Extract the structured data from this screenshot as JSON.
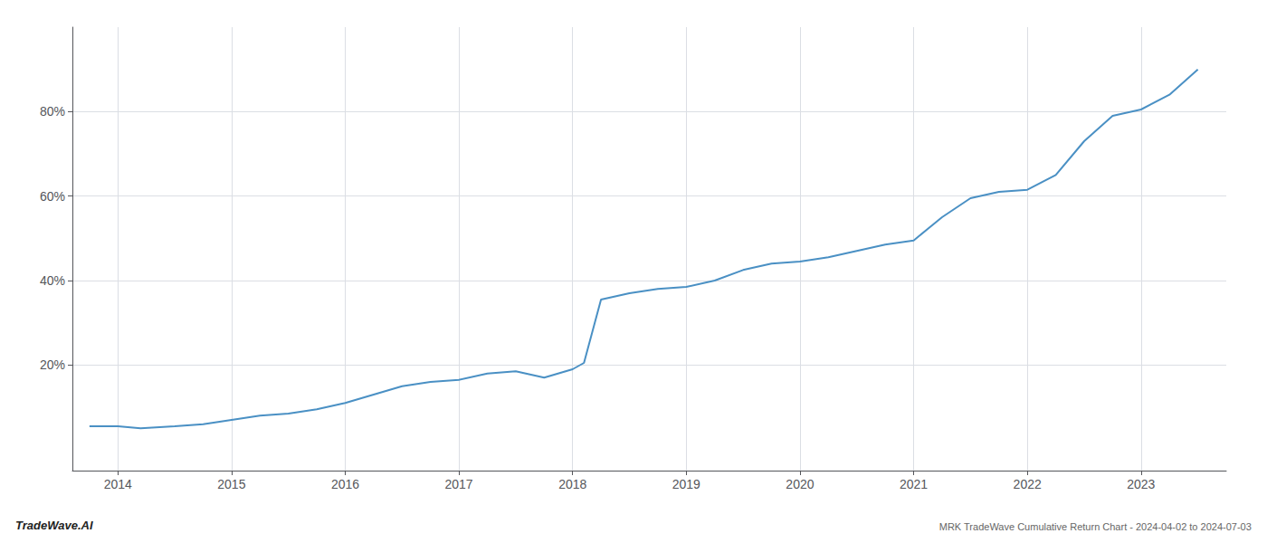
{
  "chart_data": {
    "type": "line",
    "color": "#4a90c4",
    "grid": true,
    "annotations": [
      "TradeWave.AI",
      "MRK TradeWave Cumulative Return Chart - 2024-04-02 to 2024-07-03"
    ],
    "x": [
      2013.75,
      2014.0,
      2014.2,
      2014.5,
      2014.75,
      2015.0,
      2015.25,
      2015.5,
      2015.75,
      2016.0,
      2016.25,
      2016.5,
      2016.75,
      2017.0,
      2017.25,
      2017.5,
      2017.75,
      2018.0,
      2018.1,
      2018.25,
      2018.5,
      2018.75,
      2019.0,
      2019.25,
      2019.5,
      2019.75,
      2020.0,
      2020.25,
      2020.5,
      2020.75,
      2021.0,
      2021.25,
      2021.5,
      2021.75,
      2022.0,
      2022.25,
      2022.5,
      2022.75,
      2023.0,
      2023.25,
      2023.5
    ],
    "values": [
      5.5,
      5.5,
      5.0,
      5.5,
      6.0,
      7.0,
      8.0,
      8.5,
      9.5,
      11.0,
      13.0,
      15.0,
      16.0,
      16.5,
      18.0,
      18.5,
      17.0,
      19.0,
      20.5,
      35.5,
      37.0,
      38.0,
      38.5,
      40.0,
      42.5,
      44.0,
      44.5,
      45.5,
      47.0,
      48.5,
      49.5,
      55.0,
      59.5,
      61.0,
      61.5,
      65.0,
      73.0,
      79.0,
      80.5,
      84.0,
      90.0
    ],
    "xlim": [
      2013.6,
      2023.75
    ],
    "ylim": [
      -5,
      100
    ],
    "xticks": [
      2014,
      2015,
      2016,
      2017,
      2018,
      2019,
      2020,
      2021,
      2022,
      2023
    ],
    "yticks": [
      {
        "value": 20,
        "label": "20%"
      },
      {
        "value": 40,
        "label": "40%"
      },
      {
        "value": 60,
        "label": "60%"
      },
      {
        "value": 80,
        "label": "80%"
      }
    ]
  }
}
